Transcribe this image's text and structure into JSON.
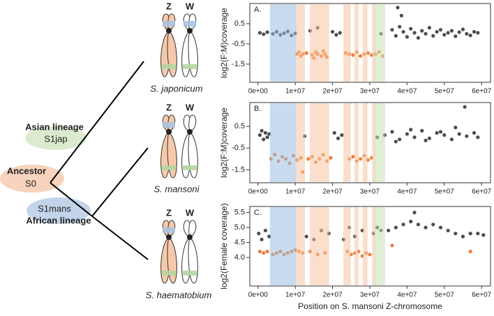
{
  "diagram": {
    "lineages": [
      {
        "name": "Asian lineage",
        "code": "S1jap"
      },
      {
        "name": "Ancestor",
        "code": "S0"
      },
      {
        "name": "African lineage",
        "code": "S1mans"
      }
    ],
    "species": [
      "S. japonicum",
      "S. mansoni",
      "S. haematobium"
    ],
    "chromosome_labels": [
      "Z",
      "W"
    ]
  },
  "chart_data": [
    {
      "type": "scatter",
      "title": "A.",
      "y_label": "log2(F:M)coverage",
      "xlim": [
        -2200000.0,
        62400000.0
      ],
      "ylim": [
        -2.4,
        1.5
      ],
      "xticks": [
        {
          "value": 0,
          "label": "0e+00"
        },
        {
          "value": 10000000.0,
          "label": "1e+07"
        },
        {
          "value": 20000000.0,
          "label": "2e+07"
        },
        {
          "value": 30000000.0,
          "label": "3e+07"
        },
        {
          "value": 40000000.0,
          "label": "4e+07"
        },
        {
          "value": 50000000.0,
          "label": "5e+07"
        },
        {
          "value": 60000000.0,
          "label": "6e+07"
        }
      ],
      "yticks": [
        0.5,
        -0.5,
        -1.5
      ],
      "bands": [
        {
          "start": 3200000.0,
          "end": 10300000.0,
          "color": "#9dbde0"
        },
        {
          "start": 10300000.0,
          "end": 12600000.0,
          "color": "#f6c4a2"
        },
        {
          "start": 13900000.0,
          "end": 19100000.0,
          "color": "#f6c4a2"
        },
        {
          "start": 22900000.0,
          "end": 24900000.0,
          "color": "#f6c4a2"
        },
        {
          "start": 25900000.0,
          "end": 27000000.0,
          "color": "#f6c4a2"
        },
        {
          "start": 28100000.0,
          "end": 29400000.0,
          "color": "#f6c4a2"
        },
        {
          "start": 30600000.0,
          "end": 31500000.0,
          "color": "#f6c4a2"
        },
        {
          "start": 31300000.0,
          "end": 34100000.0,
          "color": "#c6e0b4"
        }
      ],
      "series": [
        {
          "color": "#4d4d4d",
          "x": [
            500000.0,
            1500000.0,
            2500000.0,
            4000000.0,
            5000000.0,
            6000000.0,
            7000000.0,
            8000000.0,
            9000000.0,
            10000000.0,
            14000000.0,
            16000000.0,
            20000000.0,
            21000000.0,
            22000000.0,
            33000000.0,
            36000000.0,
            37000000.0,
            38000000.0,
            39000000.0,
            40000000.0,
            41000000.0,
            42000000.0,
            43000000.0,
            44000000.0,
            45000000.0,
            46000000.0,
            47000000.0,
            48000000.0,
            49000000.0,
            50000000.0,
            51000000.0,
            52000000.0,
            53000000.0,
            54000000.0,
            55000000.0,
            56000000.0,
            57000000.0,
            58000000.0,
            59000000.0,
            37500000.0,
            38500000.0
          ],
          "values": [
            0.05,
            -0.02,
            0.08,
            0.0,
            0.1,
            -0.05,
            0.03,
            0.12,
            -0.08,
            0.02,
            0.15,
            0.3,
            0.1,
            -0.05,
            0.05,
            0.0,
            0.2,
            -0.1,
            0.35,
            0.1,
            -0.15,
            0.25,
            0.05,
            -0.2,
            0.15,
            0.0,
            0.3,
            -0.1,
            0.1,
            0.2,
            -0.05,
            0.05,
            0.15,
            -0.12,
            0.08,
            0.22,
            0.0,
            -0.08,
            0.1,
            0.05,
            1.3,
            0.9
          ]
        },
        {
          "color": "#ef7d3c",
          "x": [
            10500000.0,
            11000000.0,
            11500000.0,
            12000000.0,
            13000000.0,
            14500000.0,
            15000000.0,
            15500000.0,
            16000000.0,
            17000000.0,
            17500000.0,
            18000000.0,
            18500000.0,
            23500000.0,
            24500000.0,
            25500000.0,
            26500000.0,
            27500000.0,
            28500000.0,
            29500000.0,
            30500000.0,
            31500000.0,
            32500000.0,
            33500000.0
          ],
          "values": [
            -1.0,
            -0.9,
            -1.1,
            -1.0,
            -0.95,
            -1.05,
            -1.2,
            -0.9,
            -1.0,
            -1.1,
            -0.85,
            -1.0,
            -1.15,
            -0.95,
            -1.0,
            -1.05,
            -0.9,
            -1.1,
            -1.0,
            -0.95,
            -1.05,
            -1.0,
            -0.9,
            -1.1
          ]
        }
      ]
    },
    {
      "type": "scatter",
      "title": "B.",
      "y_label": "log2(F:M)coverage",
      "xlim": [
        -2200000.0,
        62400000.0
      ],
      "ylim": [
        -2.1,
        1.6
      ],
      "xticks": [
        {
          "value": 0,
          "label": "0e+00"
        },
        {
          "value": 10000000.0,
          "label": "1e+07"
        },
        {
          "value": 20000000.0,
          "label": "2e+07"
        },
        {
          "value": 30000000.0,
          "label": "3e+07"
        },
        {
          "value": 40000000.0,
          "label": "4e+07"
        },
        {
          "value": 50000000.0,
          "label": "5e+07"
        },
        {
          "value": 60000000.0,
          "label": "6e+07"
        }
      ],
      "yticks": [
        0.5,
        -0.5,
        -1.5
      ],
      "bands": [
        {
          "start": 3200000.0,
          "end": 10300000.0,
          "color": "#9dbde0"
        },
        {
          "start": 10300000.0,
          "end": 12600000.0,
          "color": "#f6c4a2"
        },
        {
          "start": 13900000.0,
          "end": 19100000.0,
          "color": "#f6c4a2"
        },
        {
          "start": 22900000.0,
          "end": 24900000.0,
          "color": "#f6c4a2"
        },
        {
          "start": 25900000.0,
          "end": 27000000.0,
          "color": "#f6c4a2"
        },
        {
          "start": 28100000.0,
          "end": 29400000.0,
          "color": "#f6c4a2"
        },
        {
          "start": 30600000.0,
          "end": 31500000.0,
          "color": "#f6c4a2"
        },
        {
          "start": 31300000.0,
          "end": 34100000.0,
          "color": "#c6e0b4"
        }
      ],
      "series": [
        {
          "color": "#4d4d4d",
          "x": [
            500000.0,
            1000000.0,
            1500000.0,
            2000000.0,
            2500000.0,
            3000000.0,
            12500000.0,
            20500000.0,
            21500000.0,
            22500000.0,
            32000000.0,
            34000000.0,
            36000000.0,
            38000000.0,
            40000000.0,
            42000000.0,
            44000000.0,
            46000000.0,
            48000000.0,
            50000000.0,
            52000000.0,
            54000000.0,
            56000000.0,
            58000000.0,
            59000000.0,
            37000000.0,
            41000000.0,
            45000000.0,
            49000000.0,
            53000000.0,
            55500000.0
          ],
          "values": [
            0.1,
            0.3,
            -0.1,
            0.2,
            0.0,
            0.15,
            0.05,
            0.2,
            -0.05,
            0.1,
            0.0,
            0.1,
            0.25,
            -0.1,
            0.15,
            0.0,
            0.3,
            -0.05,
            0.2,
            0.1,
            -0.1,
            0.15,
            0.05,
            0.2,
            0.0,
            -0.2,
            0.35,
            -0.15,
            0.25,
            0.45,
            1.4
          ]
        },
        {
          "color": "#ef7d3c",
          "x": [
            3500000.0,
            4500000.0,
            5500000.0,
            6500000.0,
            7500000.0,
            8500000.0,
            9500000.0,
            10500000.0,
            11500000.0,
            13500000.0,
            14500000.0,
            15500000.0,
            16500000.0,
            17500000.0,
            18500000.0,
            19500000.0,
            24500000.0,
            25500000.0,
            26500000.0,
            27500000.0,
            28500000.0,
            29500000.0,
            30500000.0,
            12000000.0
          ],
          "values": [
            -1.0,
            -0.8,
            -1.1,
            -0.9,
            -1.0,
            -1.2,
            -0.85,
            -1.05,
            -0.95,
            -1.0,
            -0.9,
            -1.15,
            -1.0,
            -0.8,
            -1.1,
            -0.95,
            -1.0,
            -0.9,
            -1.1,
            -1.0,
            -0.85,
            -1.05,
            -0.95,
            -1.6
          ]
        }
      ]
    },
    {
      "type": "scatter",
      "title": "C.",
      "y_label": "log2(Female coverage)",
      "x_label": "Position on S. mansoni Z-chromosome",
      "xlim": [
        -2200000.0,
        62400000.0
      ],
      "ylim": [
        3.05,
        5.7
      ],
      "xticks": [
        {
          "value": 0,
          "label": "0e+00"
        },
        {
          "value": 10000000.0,
          "label": "1e+07"
        },
        {
          "value": 20000000.0,
          "label": "2e+07"
        },
        {
          "value": 30000000.0,
          "label": "3e+07"
        },
        {
          "value": 40000000.0,
          "label": "4e+07"
        },
        {
          "value": 50000000.0,
          "label": "5e+07"
        },
        {
          "value": 60000000.0,
          "label": "6e+07"
        }
      ],
      "yticks": [
        5.5,
        {
          "value": 5,
          "label": "5.0"
        },
        4.5,
        {
          "value": 4,
          "label": "4.0"
        }
      ],
      "bands": [
        {
          "start": 3200000.0,
          "end": 10300000.0,
          "color": "#9dbde0"
        },
        {
          "start": 10300000.0,
          "end": 12600000.0,
          "color": "#f6c4a2"
        },
        {
          "start": 13900000.0,
          "end": 19100000.0,
          "color": "#f6c4a2"
        },
        {
          "start": 22900000.0,
          "end": 24900000.0,
          "color": "#f6c4a2"
        },
        {
          "start": 25900000.0,
          "end": 27000000.0,
          "color": "#f6c4a2"
        },
        {
          "start": 28100000.0,
          "end": 29400000.0,
          "color": "#f6c4a2"
        },
        {
          "start": 30600000.0,
          "end": 31500000.0,
          "color": "#f6c4a2"
        },
        {
          "start": 31300000.0,
          "end": 34100000.0,
          "color": "#c6e0b4"
        }
      ],
      "series": [
        {
          "color": "#4d4d4d",
          "x": [
            200000.0,
            1000000.0,
            2000000.0,
            3000000.0,
            13000000.0,
            15000000.0,
            17000000.0,
            19000000.0,
            23000000.0,
            24500000.0,
            26000000.0,
            28000000.0,
            31000000.0,
            32000000.0,
            33000000.0,
            35000000.0,
            37000000.0,
            39000000.0,
            41000000.0,
            43000000.0,
            45000000.0,
            47000000.0,
            49000000.0,
            51000000.0,
            53000000.0,
            55000000.0,
            57000000.0,
            59000000.0,
            42000000.0,
            60500000.0
          ],
          "values": [
            4.8,
            4.6,
            4.9,
            4.7,
            4.7,
            4.6,
            4.9,
            4.8,
            4.6,
            5.0,
            4.7,
            4.9,
            4.8,
            5.0,
            4.9,
            4.9,
            5.0,
            5.1,
            5.2,
            5.1,
            5.0,
            5.1,
            5.0,
            4.9,
            4.8,
            4.7,
            4.8,
            4.8,
            5.5,
            4.75
          ]
        },
        {
          "color": "#ef7d3c",
          "x": [
            500000.0,
            1500000.0,
            2500000.0,
            4000000.0,
            5000000.0,
            6000000.0,
            7000000.0,
            8000000.0,
            9000000.0,
            10000000.0,
            11000000.0,
            12000000.0,
            14000000.0,
            16000000.0,
            18000000.0,
            24000000.0,
            25000000.0,
            26000000.0,
            27000000.0,
            28000000.0,
            29000000.0,
            30000000.0,
            36000000.0,
            57000000.0
          ],
          "values": [
            4.2,
            4.15,
            4.2,
            4.1,
            4.15,
            4.2,
            4.1,
            4.15,
            4.2,
            4.25,
            4.2,
            4.15,
            4.2,
            4.1,
            4.15,
            4.2,
            4.1,
            4.15,
            4.2,
            4.05,
            4.15,
            4.1,
            4.4,
            4.2
          ]
        }
      ]
    }
  ]
}
